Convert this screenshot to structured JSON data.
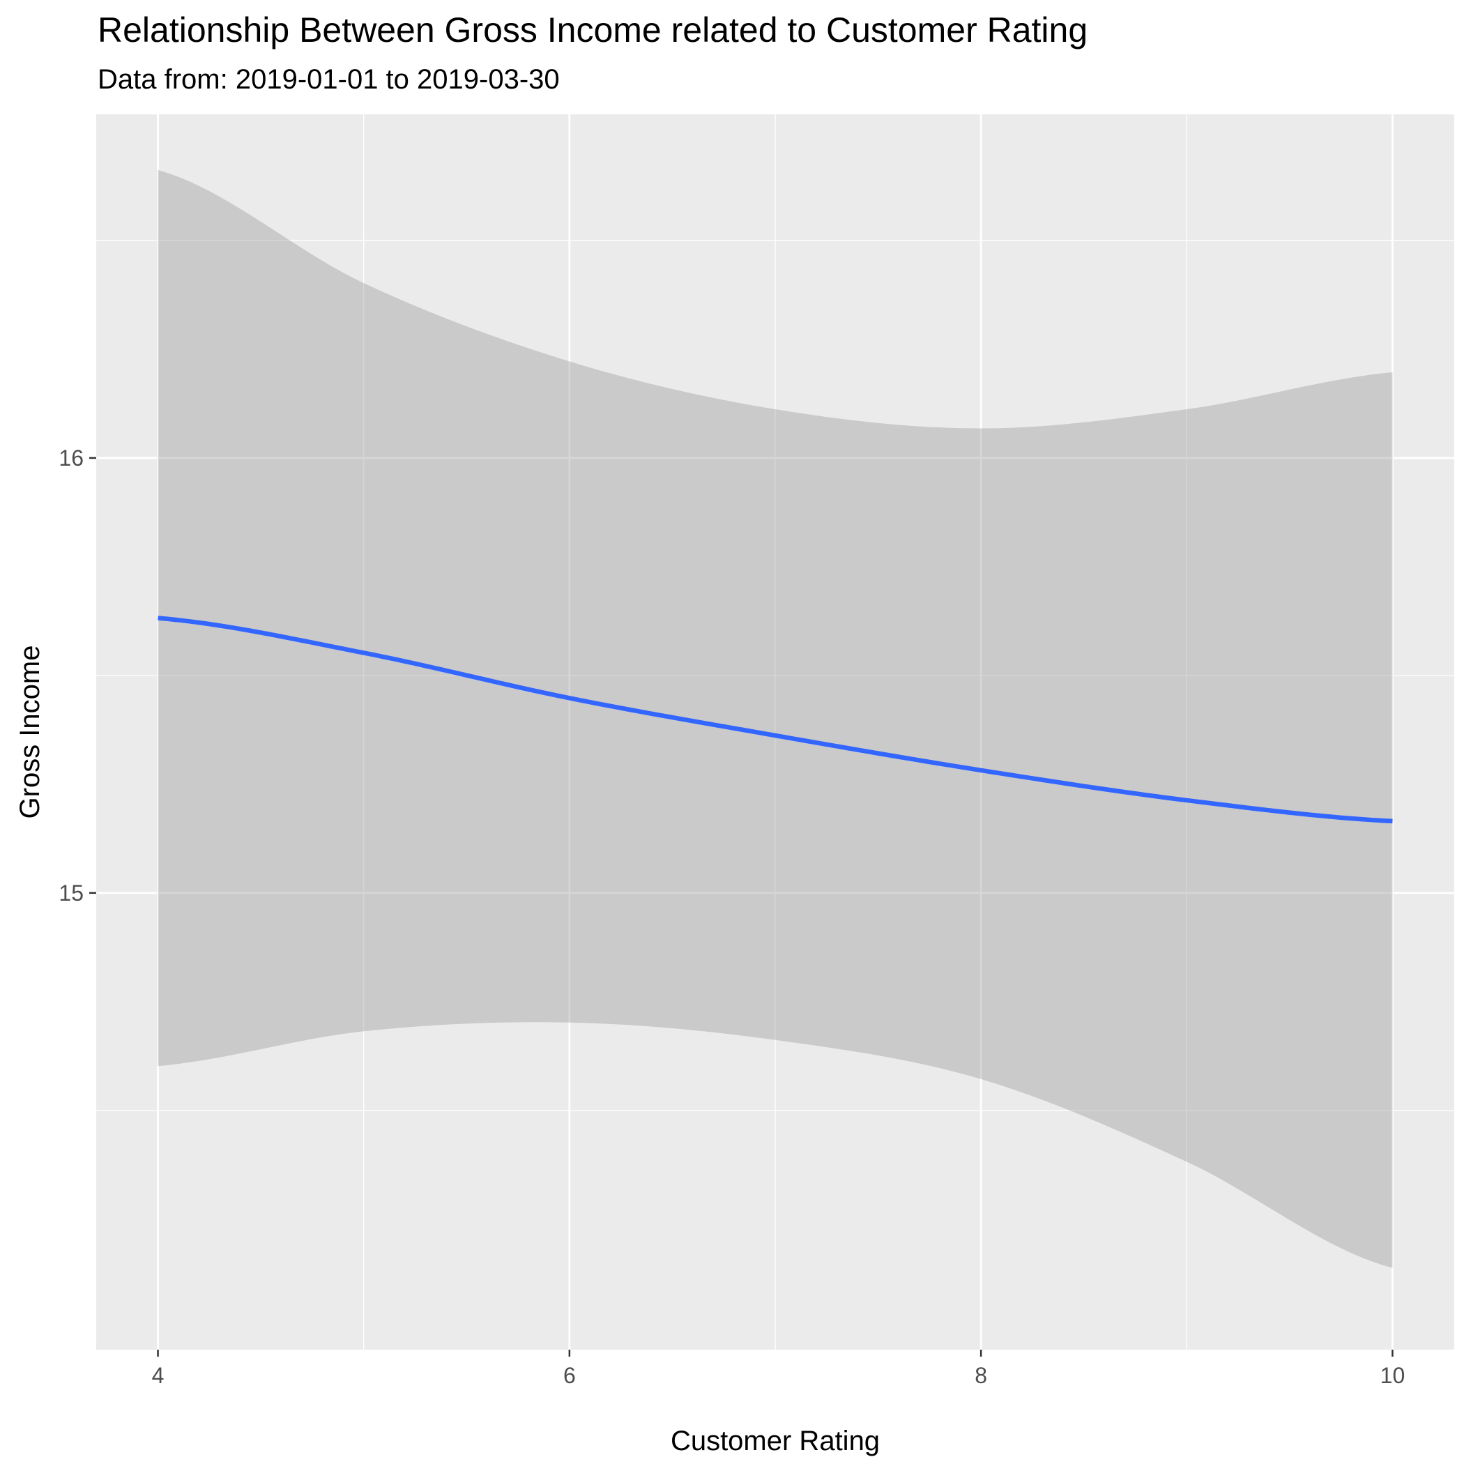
{
  "chart_data": {
    "type": "line",
    "title": "Relationship Between Gross Income related to Customer Rating",
    "subtitle": "Data from: 2019-01-01 to 2019-03-30",
    "xlabel": "Customer Rating",
    "ylabel": "Gross Income",
    "xlim": [
      3.7,
      10.3
    ],
    "ylim": [
      13.95,
      16.79
    ],
    "x_ticks": [
      4,
      6,
      8,
      10
    ],
    "y_ticks": [
      15,
      16
    ],
    "grid": true,
    "colors": {
      "panel_background": "#EBEBEB",
      "grid": "#FFFFFF",
      "line": "#3366FF",
      "ribbon": "#C8C8C8"
    },
    "series": [
      {
        "type": "smooth-linear-fit",
        "x": [
          4,
          5,
          6,
          7,
          8,
          9,
          10
        ],
        "y": [
          15.632,
          15.552,
          15.448,
          15.362,
          15.282,
          15.213,
          15.165
        ],
        "ci_lower": [
          14.602,
          14.682,
          14.702,
          14.662,
          14.572,
          14.382,
          14.138
        ],
        "ci_upper": [
          16.662,
          16.402,
          16.222,
          16.112,
          16.068,
          16.112,
          16.197
        ]
      }
    ]
  }
}
